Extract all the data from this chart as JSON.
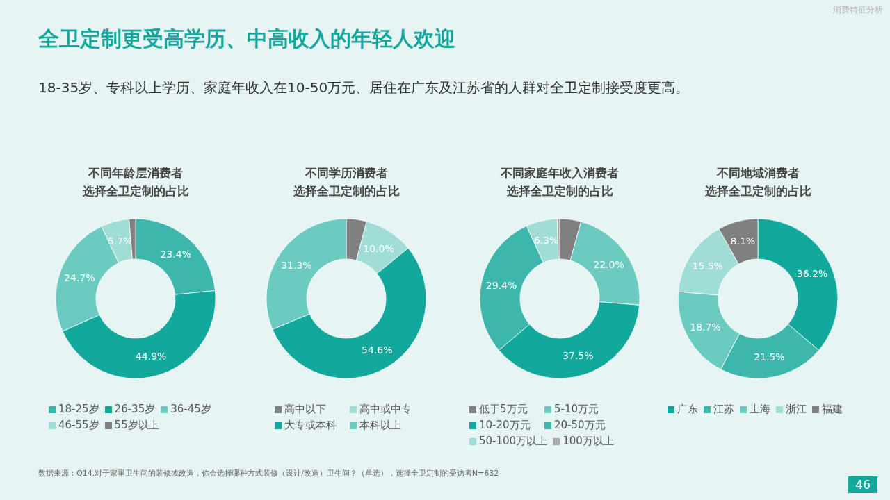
{
  "chart_data": [
    {
      "type": "other",
      "title": "全卫定制更受高学历、中高收入的年轻人欢迎",
      "subtitle": "18-35岁、专科以上学历、家庭年收入在10-50万元、居住在广东及江苏省的人群对全卫定制接受度更高。",
      "annotations": [
        "消费特征分析",
        "数据来源：Q14.对于家里卫生间的装修或改造，你会选择哪种方式装修（设计/改造）卫生间？（单选），选择全卫定制的受访者N=632",
        "46"
      ]
    },
    {
      "type": "donut",
      "title": "不同年龄层消费者选择全卫定制的占比",
      "legend": "bottom",
      "categories": [
        "18-25岁",
        "26-35岁",
        "36-45岁",
        "46-55岁",
        "55岁以上"
      ],
      "values": [
        23.4,
        44.9,
        24.7,
        5.7,
        1.3
      ],
      "value_labels": [
        "23.4%",
        "44.9%",
        "24.7%",
        "5.7%",
        null
      ],
      "colors": [
        "#3db7ab",
        "#12a89b",
        "#6ccbc0",
        "#a0ddd6",
        "#808080"
      ]
    },
    {
      "type": "donut",
      "title": "不同学历消费者选择全卫定制的占比",
      "legend": "bottom",
      "categories": [
        "高中以下",
        "高中或中专",
        "大专或本科",
        "本科以上"
      ],
      "values": [
        4.1,
        10.0,
        54.6,
        31.3
      ],
      "value_labels": [
        null,
        "10.0%",
        "54.6%",
        "31.3%"
      ],
      "colors": [
        "#808080",
        "#a0ddd6",
        "#12a89b",
        "#6ccbc0"
      ]
    },
    {
      "type": "donut",
      "title": "不同家庭年收入消费者选择全卫定制的占比",
      "legend": "bottom",
      "categories": [
        "低于5万元",
        "5-10万元",
        "10-20万元",
        "20-50万元",
        "50-100万以上",
        "100万以上"
      ],
      "values": [
        4.3,
        22.0,
        37.5,
        29.4,
        6.3,
        0.5
      ],
      "value_labels": [
        null,
        "22.0%",
        "37.5%",
        "29.4%",
        "6.3%",
        null
      ],
      "colors": [
        "#808080",
        "#6ccbc0",
        "#12a89b",
        "#3db7ab",
        "#a0ddd6",
        "#a9a9a9"
      ]
    },
    {
      "type": "donut",
      "title": "不同地域消费者选择全卫定制的占比",
      "legend": "bottom",
      "categories": [
        "广东",
        "江苏",
        "上海",
        "浙江",
        "福建"
      ],
      "values": [
        36.2,
        21.5,
        18.7,
        15.5,
        8.1
      ],
      "value_labels": [
        "36.2%",
        "21.5%",
        "18.7%",
        "15.5%",
        "8.1%"
      ],
      "colors": [
        "#12a89b",
        "#3db7ab",
        "#6ccbc0",
        "#a0ddd6",
        "#808080"
      ]
    }
  ]
}
